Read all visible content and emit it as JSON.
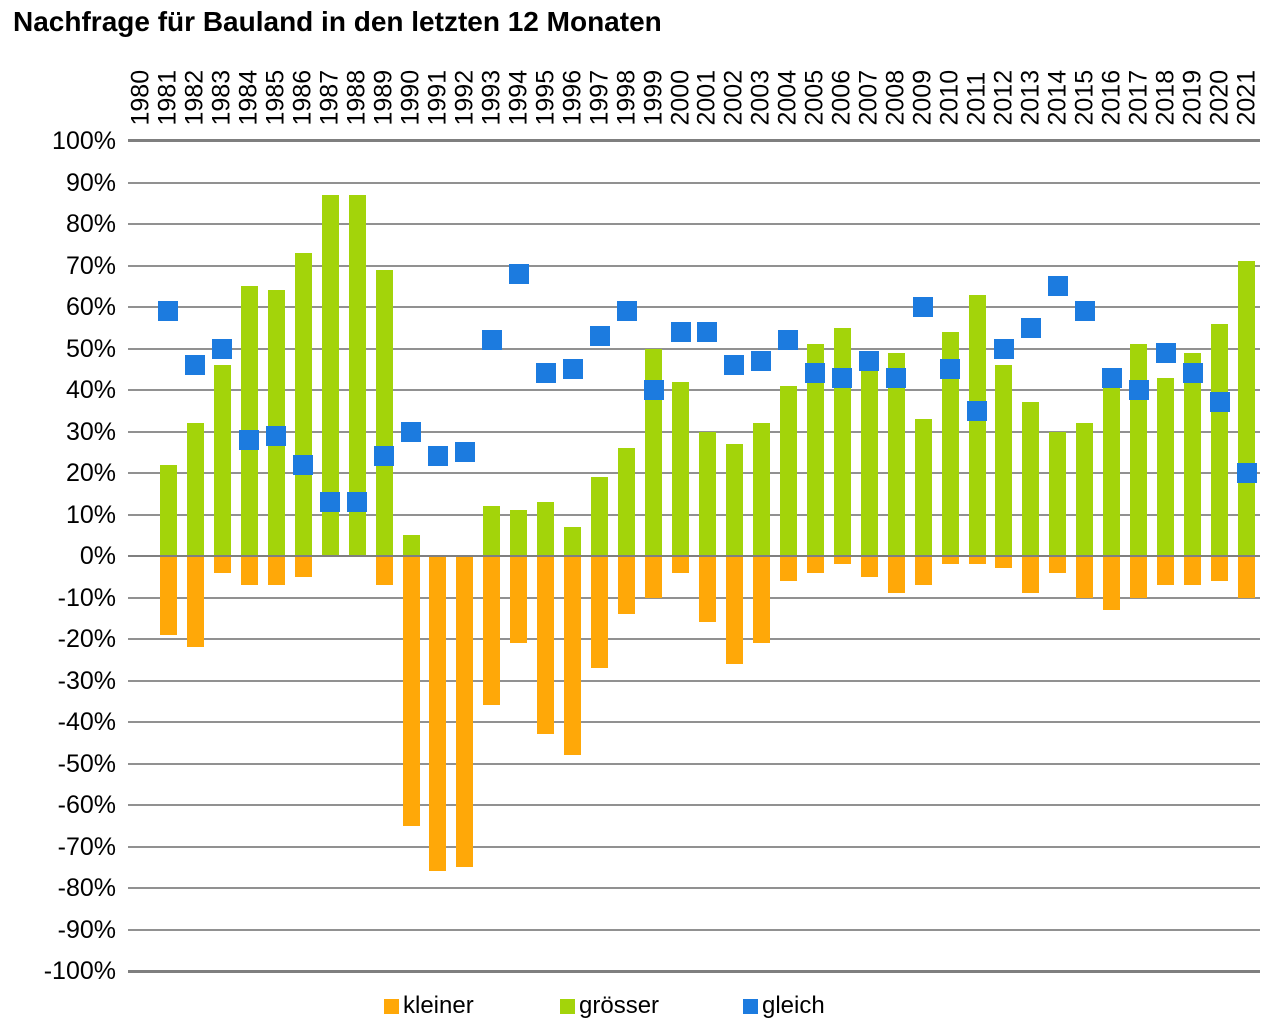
{
  "title": "Nachfrage für Bauland in den letzten 12 Monaten",
  "chart_data": {
    "type": "bar",
    "subtype": "stacked-diverging-bars-with-point-markers",
    "title": "Nachfrage für Bauland in den letzten 12 Monaten",
    "categories": [
      1980,
      1981,
      1982,
      1983,
      1984,
      1985,
      1986,
      1987,
      1988,
      1989,
      1990,
      1991,
      1992,
      1993,
      1994,
      1995,
      1996,
      1997,
      1998,
      1999,
      2000,
      2001,
      2002,
      2003,
      2004,
      2005,
      2006,
      2007,
      2008,
      2009,
      2010,
      2011,
      2012,
      2013,
      2014,
      2015,
      2016,
      2017,
      2018,
      2019,
      2020,
      2021
    ],
    "series": [
      {
        "name": "kleiner",
        "type": "bar",
        "color": "#FFA808",
        "values": [
          null,
          -19,
          -22,
          -4,
          -7,
          -7,
          -5,
          0,
          0,
          -7,
          -65,
          -76,
          -75,
          -36,
          -21,
          -43,
          -48,
          -27,
          -14,
          -10,
          -4,
          -16,
          -26,
          -21,
          -6,
          -4,
          -2,
          -5,
          -9,
          -7,
          -2,
          -2,
          -3,
          -9,
          -4,
          -10,
          -13,
          -10,
          -7,
          -7,
          -6,
          -10
        ]
      },
      {
        "name": "grösser",
        "type": "bar",
        "color": "#A3D40A",
        "values": [
          null,
          22,
          32,
          46,
          65,
          64,
          73,
          87,
          87,
          69,
          5,
          0,
          0,
          12,
          11,
          13,
          7,
          19,
          26,
          50,
          42,
          30,
          27,
          32,
          41,
          51,
          55,
          48,
          49,
          33,
          54,
          63,
          46,
          37,
          30,
          32,
          45,
          51,
          43,
          49,
          56,
          71
        ]
      },
      {
        "name": "gleich",
        "type": "scatter",
        "color": "#1C7BDF",
        "values": [
          null,
          59,
          46,
          50,
          28,
          29,
          22,
          13,
          13,
          24,
          30,
          24,
          25,
          52,
          68,
          44,
          45,
          53,
          59,
          40,
          54,
          54,
          46,
          47,
          52,
          44,
          43,
          47,
          43,
          60,
          45,
          35,
          50,
          55,
          65,
          59,
          43,
          40,
          49,
          44,
          37,
          20
        ]
      }
    ],
    "ylim": [
      -100,
      100
    ],
    "ytick_step": 10,
    "ytick_suffix": "%",
    "grid": true,
    "legend_position": "bottom",
    "grid_color": "#919191",
    "axis_color": "#7f7f7f",
    "legend_labels": [
      "kleiner",
      "grösser",
      "gleich"
    ]
  }
}
